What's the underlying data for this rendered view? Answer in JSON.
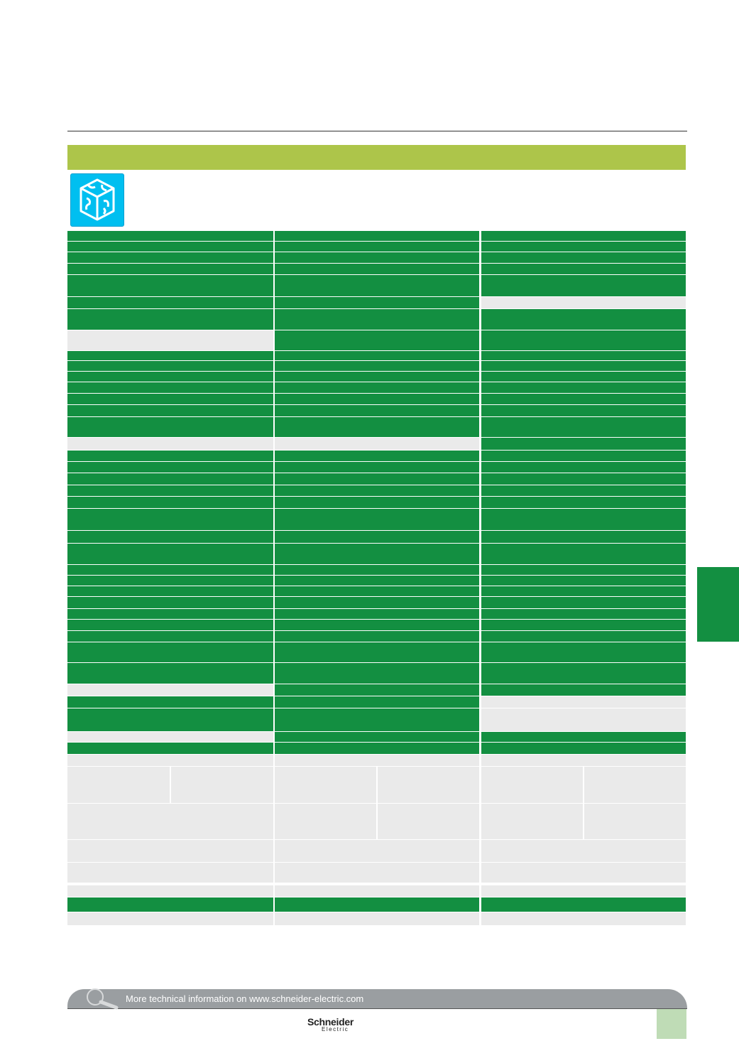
{
  "colors": {
    "header_band": "#adc54a",
    "row_green": "#138f41",
    "row_gray": "#eaeaea",
    "logo_blue": "#00bff0",
    "footer_gray": "#9a9ea1"
  },
  "logo": {
    "icon": "puzzle-cube-icon"
  },
  "footer": {
    "text": "More technical information on www.schneider-electric.com",
    "icon": "magnifier-icon",
    "brand": "Schneider",
    "brand_sub": "Electric"
  }
}
